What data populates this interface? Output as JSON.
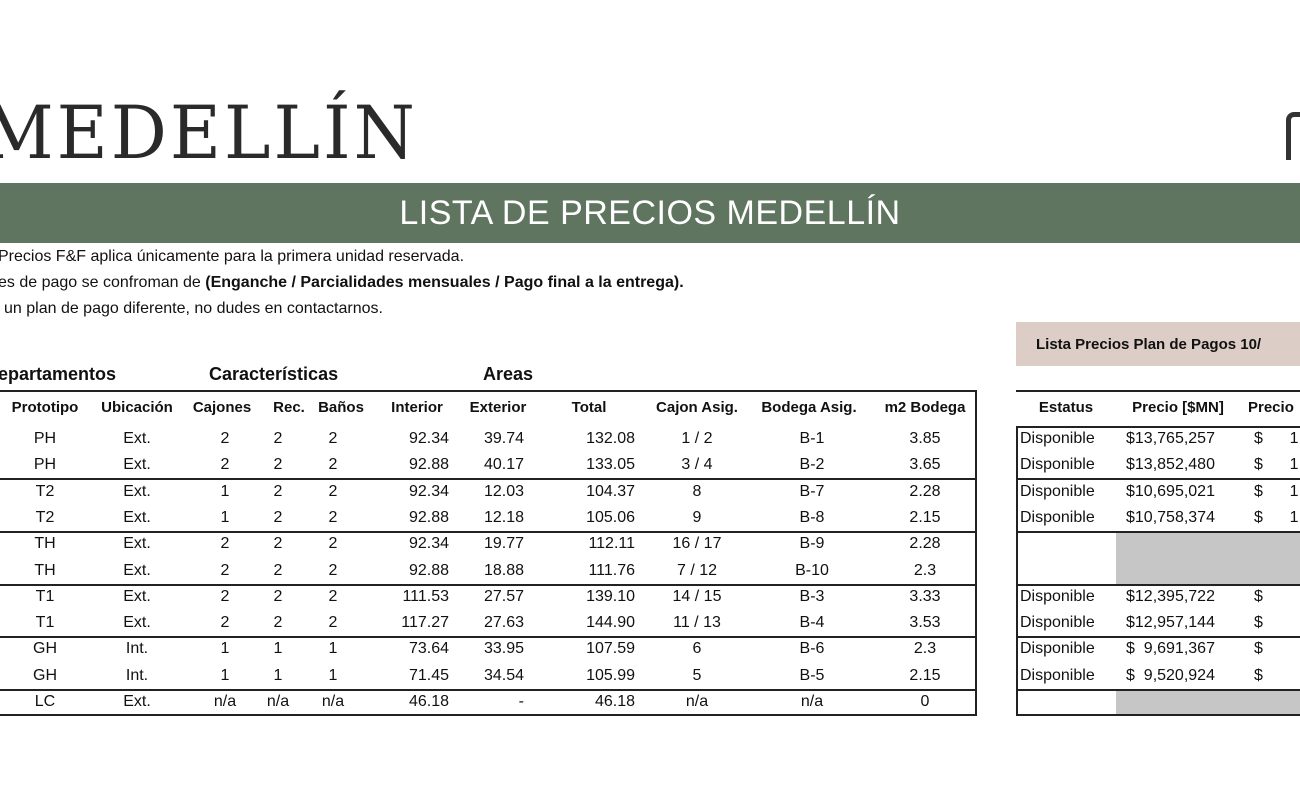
{
  "logo_text": "MEDELLÍN",
  "banner_title": "LISTA DE PRECIOS MEDELLÍN",
  "notes": {
    "line1": "Precios F&F aplica únicamente para la primera unidad reservada.",
    "line2_prefix": "es de pago se confroman de ",
    "line2_bold": "(Enganche / Parcialidades mensuales / Pago final a la entrega).",
    "line3": "un plan de pago diferente, no dudes en contactarnos."
  },
  "plan_box_label": "Lista Precios Plan de Pagos   10/",
  "section_headers": {
    "departamentos": "epartamentos",
    "caracteristicas": "Características",
    "areas": "Areas"
  },
  "columns": {
    "prototipo": "Prototipo",
    "ubicacion": "Ubicación",
    "cajones": "Cajones",
    "rec": "Rec.",
    "banos": "Baños",
    "interior": "Interior",
    "exterior": "Exterior",
    "total": "Total",
    "cajon_asig": "Cajon Asig.",
    "bodega_asig": "Bodega Asig.",
    "m2_bodega": "m2 Bodega",
    "estatus": "Estatus",
    "precio": "Precio [$MN]",
    "precio2": "Precio"
  },
  "rows": [
    {
      "prototipo": "PH",
      "ubicacion": "Ext.",
      "cajones": "2",
      "rec": "2",
      "banos": "2",
      "interior": "92.34",
      "exterior": "39.74",
      "total": "132.08",
      "cajon": "1 / 2",
      "bodega": "B-1",
      "m2": "3.85",
      "estatus": "Disponible",
      "precio": "$13,765,257",
      "precio2": "$      1"
    },
    {
      "prototipo": "PH",
      "ubicacion": "Ext.",
      "cajones": "2",
      "rec": "2",
      "banos": "2",
      "interior": "92.88",
      "exterior": "40.17",
      "total": "133.05",
      "cajon": "3 / 4",
      "bodega": "B-2",
      "m2": "3.65",
      "estatus": "Disponible",
      "precio": "$13,852,480",
      "precio2": "$      1"
    },
    {
      "prototipo": "T2",
      "ubicacion": "Ext.",
      "cajones": "1",
      "rec": "2",
      "banos": "2",
      "interior": "92.34",
      "exterior": "12.03",
      "total": "104.37",
      "cajon": "8",
      "bodega": "B-7",
      "m2": "2.28",
      "estatus": "Disponible",
      "precio": "$10,695,021",
      "precio2": "$      1"
    },
    {
      "prototipo": "T2",
      "ubicacion": "Ext.",
      "cajones": "1",
      "rec": "2",
      "banos": "2",
      "interior": "92.88",
      "exterior": "12.18",
      "total": "105.06",
      "cajon": "9",
      "bodega": "B-8",
      "m2": "2.15",
      "estatus": "Disponible",
      "precio": "$10,758,374",
      "precio2": "$      1"
    },
    {
      "prototipo": "TH",
      "ubicacion": "Ext.",
      "cajones": "2",
      "rec": "2",
      "banos": "2",
      "interior": "92.34",
      "exterior": "19.77",
      "total": "112.11",
      "cajon": "16 / 17",
      "bodega": "B-9",
      "m2": "2.28",
      "estatus": "",
      "precio": "",
      "precio2": ""
    },
    {
      "prototipo": "TH",
      "ubicacion": "Ext.",
      "cajones": "2",
      "rec": "2",
      "banos": "2",
      "interior": "92.88",
      "exterior": "18.88",
      "total": "111.76",
      "cajon": "7 / 12",
      "bodega": "B-10",
      "m2": "2.3",
      "estatus": "",
      "precio": "",
      "precio2": ""
    },
    {
      "prototipo": "T1",
      "ubicacion": "Ext.",
      "cajones": "2",
      "rec": "2",
      "banos": "2",
      "interior": "111.53",
      "exterior": "27.57",
      "total": "139.10",
      "cajon": "14 / 15",
      "bodega": "B-3",
      "m2": "3.33",
      "estatus": "Disponible",
      "precio": "$12,395,722",
      "precio2": "$"
    },
    {
      "prototipo": "T1",
      "ubicacion": "Ext.",
      "cajones": "2",
      "rec": "2",
      "banos": "2",
      "interior": "117.27",
      "exterior": "27.63",
      "total": "144.90",
      "cajon": "11 / 13",
      "bodega": "B-4",
      "m2": "3.53",
      "estatus": "Disponible",
      "precio": "$12,957,144",
      "precio2": "$"
    },
    {
      "prototipo": "GH",
      "ubicacion": "Int.",
      "cajones": "1",
      "rec": "1",
      "banos": "1",
      "interior": "73.64",
      "exterior": "33.95",
      "total": "107.59",
      "cajon": "6",
      "bodega": "B-6",
      "m2": "2.3",
      "estatus": "Disponible",
      "precio": "$  9,691,367",
      "precio2": "$"
    },
    {
      "prototipo": "GH",
      "ubicacion": "Int.",
      "cajones": "1",
      "rec": "1",
      "banos": "1",
      "interior": "71.45",
      "exterior": "34.54",
      "total": "105.99",
      "cajon": "5",
      "bodega": "B-5",
      "m2": "2.15",
      "estatus": "Disponible",
      "precio": "$  9,520,924",
      "precio2": "$"
    },
    {
      "prototipo": "LC",
      "ubicacion": "Ext.",
      "cajones": "n/a",
      "rec": "n/a",
      "banos": "n/a",
      "interior": "46.18",
      "exterior": "-",
      "total": "46.18",
      "cajon": "n/a",
      "bodega": "n/a",
      "m2": "0",
      "estatus": "",
      "precio": "",
      "precio2": ""
    }
  ]
}
